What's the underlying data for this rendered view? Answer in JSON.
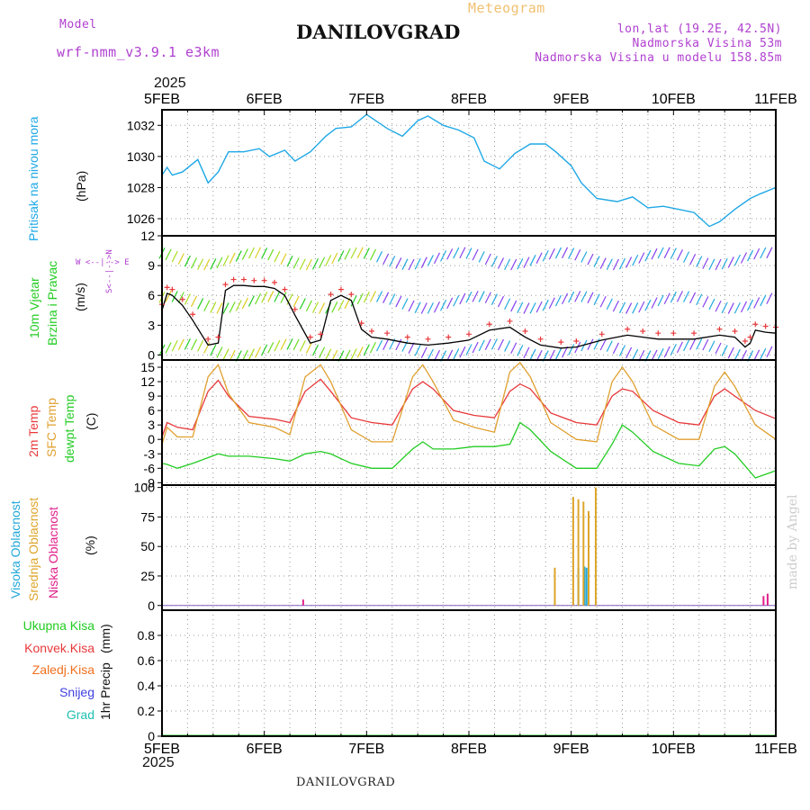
{
  "header": {
    "model_label": "Model",
    "model_name": "wrf-nmm_v3.9.1  e3km",
    "subtitle": "Meteogram",
    "title": "DANILOVGRAD",
    "lonlat": "lon,lat (19.2E, 42.5N)",
    "elevation": "Nadmorska Visina 53m",
    "model_elevation": "Nadmorska Visina u modelu 158.85m",
    "year_top": "2025",
    "year_bottom": "2025"
  },
  "footer": {
    "station": "DANILOVGRAD"
  },
  "signature": "made by Angel",
  "colors": {
    "pressure": "#1fa8e6",
    "temp2m": "#e8383a",
    "sfc": "#e0a030",
    "dewpt": "#22cc22",
    "high": "#22a8d8",
    "mid": "#dda52a",
    "low": "#e0208a",
    "header_purple": "#b040d0",
    "header_orange": "#f0c070"
  },
  "x_axis": {
    "ticks": [
      "5FEB",
      "6FEB",
      "7FEB",
      "8FEB",
      "9FEB",
      "10FEB",
      "11FEB"
    ]
  },
  "panel_labels": {
    "pressure": {
      "name": "Pritisak na nivou mora",
      "unit": "(hPa)"
    },
    "wind": {
      "name1": "10m Vjetar",
      "name2": "Brzina i Pravac",
      "unit": "(m/s)",
      "compass": "W <--|--> E",
      "compass2": "S<--|-->N"
    },
    "temp": {
      "t2m": "2m Temp",
      "sfc": "SFC Temp",
      "dew": "dewpt Temp",
      "unit": "(C)"
    },
    "cloud": {
      "high": "Visoka Oblacnost",
      "mid": "Srednja Oblacnost",
      "low": "Niska Oblacnost",
      "unit": "(%)"
    },
    "precip": {
      "total": "Ukupna Kisa",
      "conv": "Konvek.Kisa",
      "frz": "Zaledj.Kisa",
      "snow": "Snijeg",
      "grad": "Grad",
      "name": "1hr Precip",
      "unit": "(mm)"
    }
  },
  "chart_data": [
    {
      "type": "line",
      "name": "pressure",
      "ylabel": "(hPa)",
      "ylim": [
        1024.9,
        1033
      ],
      "yticks": [
        1026,
        1028,
        1030,
        1032
      ],
      "x_days": [
        0,
        0.05,
        0.1,
        0.2,
        0.35,
        0.45,
        0.55,
        0.65,
        0.8,
        0.95,
        1.05,
        1.2,
        1.3,
        1.45,
        1.6,
        1.7,
        1.85,
        2.0,
        2.2,
        2.35,
        2.5,
        2.6,
        2.75,
        2.9,
        3.05,
        3.15,
        3.3,
        3.45,
        3.6,
        3.75,
        3.85,
        4.0,
        4.1,
        4.25,
        4.45,
        4.6,
        4.75,
        4.9,
        5.05,
        5.2,
        5.35,
        5.45,
        5.6,
        5.75,
        5.85,
        6.0
      ],
      "values": [
        1028.8,
        1029.3,
        1028.8,
        1029.0,
        1029.8,
        1028.3,
        1029.0,
        1030.3,
        1030.3,
        1030.5,
        1030.0,
        1030.4,
        1029.7,
        1030.3,
        1031.3,
        1031.8,
        1031.9,
        1032.7,
        1031.8,
        1031.3,
        1032.3,
        1032.6,
        1032.0,
        1031.7,
        1031.2,
        1029.7,
        1029.2,
        1030.2,
        1030.8,
        1030.8,
        1030.3,
        1029.4,
        1028.3,
        1027.3,
        1027.1,
        1027.4,
        1026.7,
        1026.8,
        1026.6,
        1026.4,
        1025.5,
        1025.8,
        1026.6,
        1027.3,
        1027.6,
        1028.0
      ]
    },
    {
      "type": "line",
      "name": "wind_speed",
      "ylabel": "(m/s)",
      "ylim": [
        -0.5,
        12
      ],
      "yticks": [
        0,
        3,
        6,
        9,
        12
      ],
      "x_days": [
        0,
        0.05,
        0.1,
        0.2,
        0.3,
        0.45,
        0.55,
        0.62,
        0.7,
        0.8,
        0.9,
        1.0,
        1.1,
        1.2,
        1.3,
        1.45,
        1.55,
        1.65,
        1.75,
        1.85,
        1.95,
        2.05,
        2.2,
        2.4,
        2.6,
        2.8,
        3.0,
        3.2,
        3.4,
        3.55,
        3.7,
        3.9,
        4.05,
        4.3,
        4.55,
        4.7,
        4.85,
        5.0,
        5.2,
        5.45,
        5.6,
        5.7,
        5.75,
        5.8,
        5.9,
        6.0
      ],
      "values": [
        4.5,
        6.2,
        6.0,
        5.0,
        3.5,
        1.0,
        1.2,
        6.5,
        7.0,
        7.0,
        6.9,
        6.9,
        6.7,
        6.0,
        4.0,
        1.2,
        1.5,
        5.5,
        6.0,
        5.5,
        2.6,
        1.8,
        1.6,
        1.2,
        1.0,
        1.2,
        1.5,
        2.5,
        2.8,
        1.8,
        1.0,
        0.7,
        0.8,
        1.5,
        2.0,
        1.8,
        1.6,
        1.6,
        1.6,
        2.0,
        1.8,
        0.8,
        1.2,
        2.5,
        2.3,
        2.2
      ]
    },
    {
      "type": "line",
      "name": "temperature",
      "ylabel": "(C)",
      "ylim": [
        -9.5,
        16.5
      ],
      "yticks": [
        -9,
        -6,
        -3,
        0,
        3,
        6,
        9,
        12,
        15
      ],
      "x_days": [
        0,
        0.05,
        0.15,
        0.3,
        0.45,
        0.55,
        0.65,
        0.85,
        1.1,
        1.25,
        1.4,
        1.55,
        1.65,
        1.85,
        2.05,
        2.25,
        2.45,
        2.55,
        2.65,
        2.85,
        3.05,
        3.25,
        3.4,
        3.5,
        3.6,
        3.8,
        4.05,
        4.25,
        4.4,
        4.5,
        4.6,
        4.8,
        5.05,
        5.25,
        5.4,
        5.5,
        5.6,
        5.8,
        6.0
      ],
      "series": [
        {
          "name": "2m Temp",
          "values": [
            0.5,
            3.5,
            2.5,
            2.0,
            10.0,
            12.3,
            9.0,
            4.8,
            4.2,
            3.5,
            10.0,
            12.5,
            10.0,
            4.5,
            3.5,
            3.0,
            10.5,
            12.0,
            10.5,
            6.0,
            5.0,
            4.5,
            10.0,
            11.5,
            10.5,
            5.5,
            3.5,
            3.0,
            9.0,
            10.5,
            10.0,
            6.0,
            3.5,
            3.0,
            9.0,
            10.5,
            9.0,
            6.0,
            4.3
          ]
        },
        {
          "name": "SFC Temp",
          "values": [
            -1.0,
            2.5,
            0.5,
            0.5,
            13.0,
            15.5,
            9.5,
            3.5,
            2.5,
            1.0,
            13.0,
            15.5,
            12.0,
            2.0,
            -0.5,
            -0.5,
            13.0,
            15.5,
            12.0,
            4.0,
            2.5,
            1.5,
            14.0,
            16.0,
            13.0,
            3.5,
            0.0,
            -0.5,
            12.0,
            15.0,
            12.0,
            3.0,
            0.0,
            0.0,
            11.0,
            14.0,
            11.0,
            3.0,
            0.0
          ]
        },
        {
          "name": "dewpt Temp",
          "values": [
            -5.0,
            -5.2,
            -6.0,
            -5.0,
            -3.8,
            -3.0,
            -3.5,
            -3.5,
            -4.0,
            -4.5,
            -3.0,
            -2.5,
            -3.0,
            -5.0,
            -6.0,
            -6.0,
            -2.0,
            -0.5,
            -2.0,
            -2.0,
            -1.5,
            -1.5,
            -1.0,
            3.5,
            2.0,
            -2.5,
            -6.0,
            -6.0,
            -1.0,
            3.0,
            1.5,
            -2.5,
            -5.0,
            -5.5,
            -2.0,
            -1.5,
            -3.0,
            -8.0,
            -6.5
          ]
        }
      ]
    },
    {
      "type": "bar",
      "name": "cloud_cover",
      "ylabel": "(%)",
      "ylim": [
        -4,
        102
      ],
      "yticks": [
        0,
        25,
        50,
        75,
        100
      ],
      "series": [
        {
          "name": "Visoka Oblacnost",
          "x_days": [
            4.07,
            4.15,
            4.13,
            4.17
          ],
          "values": [
            32,
            32,
            33,
            33
          ]
        },
        {
          "name": "Srednja Oblacnost",
          "x_days": [
            3.84,
            4.02,
            4.07,
            4.12,
            4.17,
            4.24
          ],
          "values": [
            32,
            92,
            90,
            88,
            80,
            100
          ]
        },
        {
          "name": "Niska Oblacnost",
          "x_days": [
            1.38,
            5.88,
            5.92
          ],
          "values": [
            5,
            8,
            10
          ]
        }
      ]
    },
    {
      "type": "bar",
      "name": "precipitation",
      "ylabel": "(mm)",
      "ylim": [
        0,
        1.0
      ],
      "yticks": [
        0,
        0.2,
        0.4,
        0.6,
        0.8
      ],
      "values": []
    }
  ]
}
